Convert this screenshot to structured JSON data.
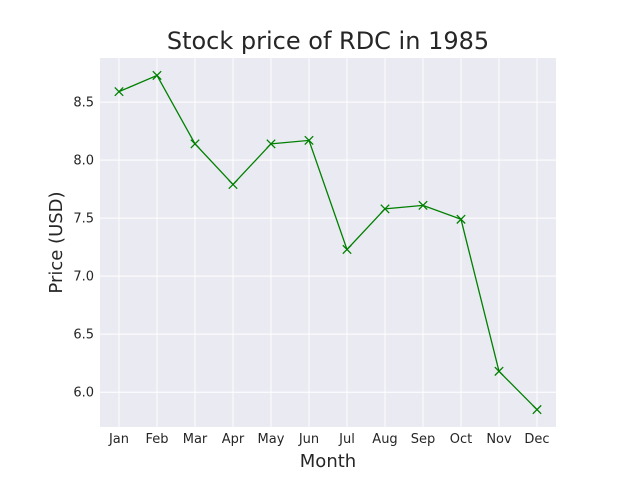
{
  "chart_data": {
    "type": "line",
    "title": "Stock price of RDC in 1985",
    "xlabel": "Month",
    "ylabel": "Price (USD)",
    "categories": [
      "Jan",
      "Feb",
      "Mar",
      "Apr",
      "May",
      "Jun",
      "Jul",
      "Aug",
      "Sep",
      "Oct",
      "Nov",
      "Dec"
    ],
    "series": [
      {
        "values": [
          8.59,
          8.73,
          8.14,
          7.79,
          8.14,
          8.17,
          7.23,
          7.58,
          7.61,
          7.49,
          6.18,
          5.85
        ],
        "color": "#008000",
        "marker": "x"
      }
    ],
    "yticks": [
      6.0,
      6.5,
      7.0,
      7.5,
      8.0,
      8.5
    ],
    "ytick_labels": [
      "6.0",
      "6.5",
      "7.0",
      "7.5",
      "8.0",
      "8.5"
    ],
    "ylim": [
      5.7,
      8.88
    ],
    "grid": true,
    "background_color": "#eaeaf2",
    "grid_color": "#ffffff"
  }
}
